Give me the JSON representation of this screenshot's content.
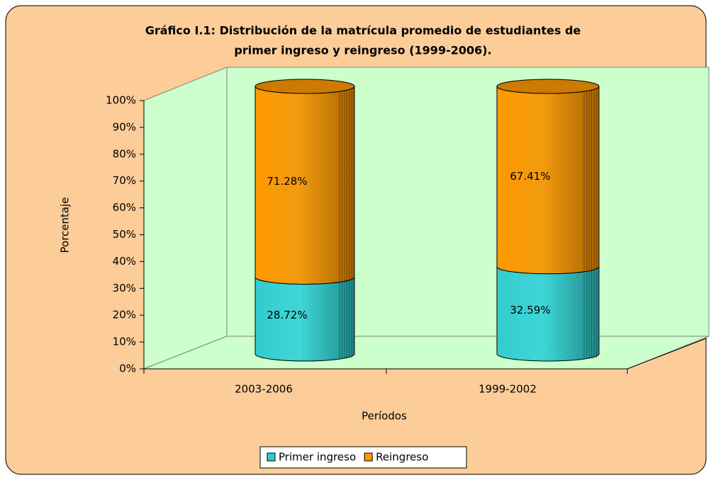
{
  "chart_data": {
    "type": "bar3d_stacked_cylinder",
    "title": [
      "Gráfico I.1: Distribución de la matrícula promedio de estudiantes de",
      "primer ingreso y reingreso (1999-2006)."
    ],
    "xlabel": "Períodos",
    "ylabel": "Porcentaje",
    "categories": [
      "2003-2006",
      "1999-2002"
    ],
    "series": [
      {
        "name": "Primer ingreso",
        "color": "#33cccc",
        "values": [
          28.72,
          32.59
        ],
        "value_labels": [
          "28.72%",
          "32.59%"
        ]
      },
      {
        "name": "Reingreso",
        "color": "#ff9900",
        "values": [
          71.28,
          67.41
        ],
        "value_labels": [
          "71.28%",
          "67.41%"
        ]
      }
    ],
    "ylim": [
      0,
      100
    ],
    "yticks": [
      {
        "value": 0,
        "label": "0%"
      },
      {
        "value": 10,
        "label": "10%"
      },
      {
        "value": 20,
        "label": "20%"
      },
      {
        "value": 30,
        "label": "30%"
      },
      {
        "value": 40,
        "label": "40%"
      },
      {
        "value": 50,
        "label": "50%"
      },
      {
        "value": 60,
        "label": "60%"
      },
      {
        "value": 70,
        "label": "70%"
      },
      {
        "value": 80,
        "label": "80%"
      },
      {
        "value": 90,
        "label": "90%"
      },
      {
        "value": 100,
        "label": "100%"
      }
    ],
    "legend": "bottom"
  }
}
